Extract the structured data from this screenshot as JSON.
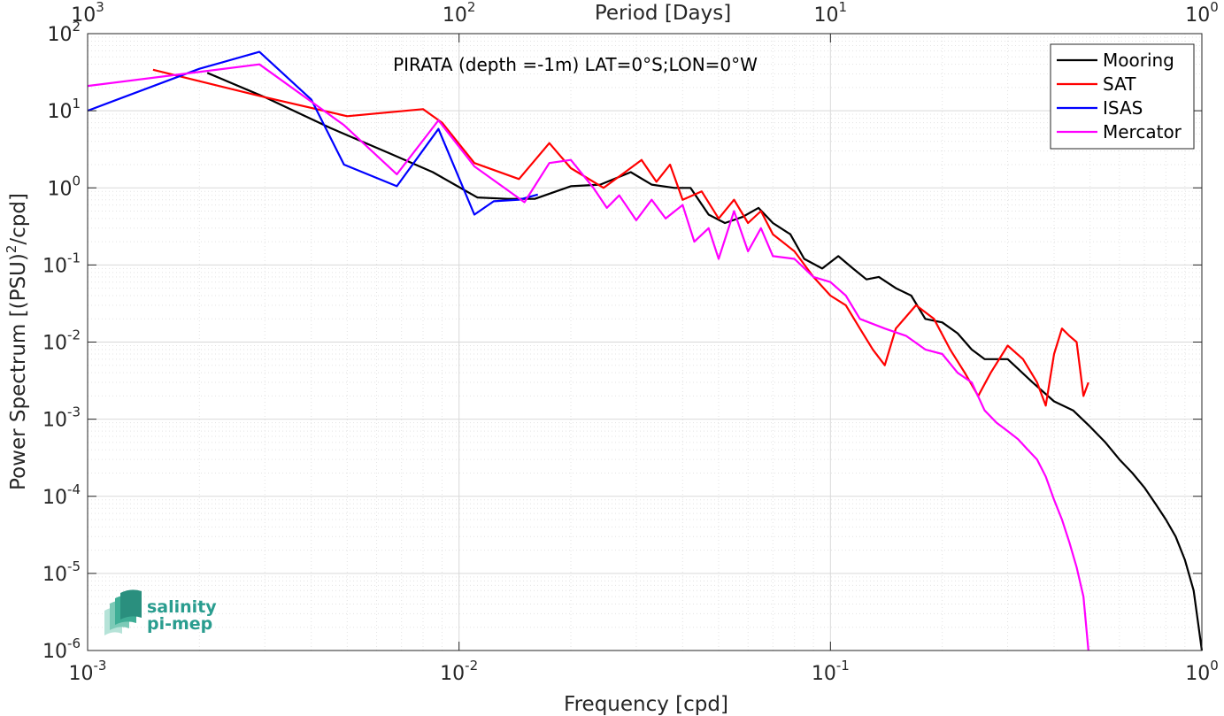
{
  "chart_data": {
    "type": "line",
    "title": "PIRATA (depth =-1m) LAT=0°S;LON=0°W",
    "xlabel": "Frequency [cpd]",
    "ylabel_main": "Power Spectrum [(PSU)",
    "ylabel_sup": "2",
    "ylabel_tail": "/cpd]",
    "top_xlabel": "Period [Days]",
    "x_scale": "log",
    "y_scale": "log",
    "xlim": [
      0.001,
      1
    ],
    "ylim": [
      1e-06,
      100
    ],
    "grid": true,
    "legend_position": "top-right",
    "x_ticks": [
      {
        "base": "10",
        "exp": "-3",
        "value": 0.001
      },
      {
        "base": "10",
        "exp": "-2",
        "value": 0.01
      },
      {
        "base": "10",
        "exp": "-1",
        "value": 0.1
      },
      {
        "base": "10",
        "exp": "0",
        "value": 1
      }
    ],
    "top_ticks": [
      {
        "base": "10",
        "exp": "3",
        "value": 0.001
      },
      {
        "base": "10",
        "exp": "2",
        "value": 0.01
      },
      {
        "base": "10",
        "exp": "1",
        "value": 0.1
      },
      {
        "base": "10",
        "exp": "0",
        "value": 1
      }
    ],
    "y_ticks": [
      {
        "base": "10",
        "exp": "2",
        "value": 100
      },
      {
        "base": "10",
        "exp": "1",
        "value": 10
      },
      {
        "base": "10",
        "exp": "0",
        "value": 1
      },
      {
        "base": "10",
        "exp": "-1",
        "value": 0.1
      },
      {
        "base": "10",
        "exp": "-2",
        "value": 0.01
      },
      {
        "base": "10",
        "exp": "-3",
        "value": 0.001
      },
      {
        "base": "10",
        "exp": "-4",
        "value": 0.0001
      },
      {
        "base": "10",
        "exp": "-5",
        "value": 1e-05
      },
      {
        "base": "10",
        "exp": "-6",
        "value": 1e-06
      }
    ],
    "series": [
      {
        "name": "Mooring",
        "color": "#000000",
        "points": [
          [
            0.0021,
            31
          ],
          [
            0.003,
            15
          ],
          [
            0.0045,
            6
          ],
          [
            0.0065,
            2.8
          ],
          [
            0.0085,
            1.6
          ],
          [
            0.0112,
            0.75
          ],
          [
            0.0135,
            0.72
          ],
          [
            0.016,
            0.72
          ],
          [
            0.02,
            1.05
          ],
          [
            0.024,
            1.1
          ],
          [
            0.029,
            1.6
          ],
          [
            0.033,
            1.1
          ],
          [
            0.038,
            1.0
          ],
          [
            0.042,
            1.0
          ],
          [
            0.047,
            0.45
          ],
          [
            0.052,
            0.35
          ],
          [
            0.058,
            0.42
          ],
          [
            0.064,
            0.55
          ],
          [
            0.07,
            0.35
          ],
          [
            0.078,
            0.25
          ],
          [
            0.085,
            0.12
          ],
          [
            0.095,
            0.09
          ],
          [
            0.105,
            0.13
          ],
          [
            0.115,
            0.09
          ],
          [
            0.125,
            0.065
          ],
          [
            0.135,
            0.07
          ],
          [
            0.15,
            0.05
          ],
          [
            0.165,
            0.04
          ],
          [
            0.18,
            0.02
          ],
          [
            0.2,
            0.018
          ],
          [
            0.22,
            0.013
          ],
          [
            0.24,
            0.008
          ],
          [
            0.26,
            0.006
          ],
          [
            0.3,
            0.006
          ],
          [
            0.35,
            0.003
          ],
          [
            0.4,
            0.0017
          ],
          [
            0.45,
            0.0013
          ],
          [
            0.5,
            0.0008
          ],
          [
            0.55,
            0.0005
          ],
          [
            0.6,
            0.0003
          ],
          [
            0.65,
            0.0002
          ],
          [
            0.7,
            0.00013
          ],
          [
            0.75,
            8e-05
          ],
          [
            0.8,
            5e-05
          ],
          [
            0.85,
            3e-05
          ],
          [
            0.9,
            1.5e-05
          ],
          [
            0.95,
            6e-06
          ],
          [
            1.0,
            1e-06
          ]
        ]
      },
      {
        "name": "SAT",
        "color": "#ff0000",
        "points": [
          [
            0.0015,
            34
          ],
          [
            0.003,
            15
          ],
          [
            0.005,
            8.5
          ],
          [
            0.008,
            10.5
          ],
          [
            0.009,
            7
          ],
          [
            0.011,
            2.1
          ],
          [
            0.0145,
            1.3
          ],
          [
            0.0175,
            3.8
          ],
          [
            0.02,
            1.8
          ],
          [
            0.0245,
            1.0
          ],
          [
            0.028,
            1.6
          ],
          [
            0.031,
            2.3
          ],
          [
            0.034,
            1.2
          ],
          [
            0.037,
            2.0
          ],
          [
            0.04,
            0.7
          ],
          [
            0.045,
            0.9
          ],
          [
            0.05,
            0.4
          ],
          [
            0.055,
            0.7
          ],
          [
            0.06,
            0.35
          ],
          [
            0.065,
            0.5
          ],
          [
            0.07,
            0.25
          ],
          [
            0.08,
            0.15
          ],
          [
            0.09,
            0.07
          ],
          [
            0.1,
            0.04
          ],
          [
            0.11,
            0.03
          ],
          [
            0.12,
            0.015
          ],
          [
            0.13,
            0.008
          ],
          [
            0.14,
            0.005
          ],
          [
            0.15,
            0.015
          ],
          [
            0.17,
            0.03
          ],
          [
            0.19,
            0.02
          ],
          [
            0.21,
            0.008
          ],
          [
            0.23,
            0.004
          ],
          [
            0.25,
            0.002
          ],
          [
            0.27,
            0.004
          ],
          [
            0.3,
            0.009
          ],
          [
            0.33,
            0.006
          ],
          [
            0.36,
            0.003
          ],
          [
            0.38,
            0.0015
          ],
          [
            0.4,
            0.007
          ],
          [
            0.42,
            0.015
          ],
          [
            0.44,
            0.012
          ],
          [
            0.46,
            0.01
          ],
          [
            0.48,
            0.002
          ],
          [
            0.495,
            0.003
          ]
        ]
      },
      {
        "name": "ISAS",
        "color": "#0000ff",
        "points": [
          [
            0.001,
            10
          ],
          [
            0.002,
            35
          ],
          [
            0.0029,
            58
          ],
          [
            0.004,
            14
          ],
          [
            0.0049,
            2.0
          ],
          [
            0.0068,
            1.05
          ],
          [
            0.0088,
            5.8
          ],
          [
            0.011,
            0.45
          ],
          [
            0.0124,
            0.67
          ],
          [
            0.0145,
            0.7
          ],
          [
            0.0163,
            0.82
          ]
        ]
      },
      {
        "name": "Mercator",
        "color": "#ff00ff",
        "points": [
          [
            0.001,
            21
          ],
          [
            0.0029,
            40
          ],
          [
            0.0049,
            6.5
          ],
          [
            0.0068,
            1.5
          ],
          [
            0.0088,
            7.5
          ],
          [
            0.011,
            1.9
          ],
          [
            0.015,
            0.65
          ],
          [
            0.0175,
            2.1
          ],
          [
            0.02,
            2.3
          ],
          [
            0.023,
            1.0
          ],
          [
            0.025,
            0.55
          ],
          [
            0.027,
            0.8
          ],
          [
            0.03,
            0.38
          ],
          [
            0.033,
            0.7
          ],
          [
            0.036,
            0.4
          ],
          [
            0.04,
            0.6
          ],
          [
            0.043,
            0.2
          ],
          [
            0.047,
            0.3
          ],
          [
            0.05,
            0.12
          ],
          [
            0.055,
            0.5
          ],
          [
            0.06,
            0.15
          ],
          [
            0.065,
            0.3
          ],
          [
            0.07,
            0.13
          ],
          [
            0.08,
            0.12
          ],
          [
            0.09,
            0.07
          ],
          [
            0.1,
            0.06
          ],
          [
            0.11,
            0.04
          ],
          [
            0.12,
            0.02
          ],
          [
            0.14,
            0.015
          ],
          [
            0.16,
            0.012
          ],
          [
            0.18,
            0.008
          ],
          [
            0.2,
            0.007
          ],
          [
            0.22,
            0.004
          ],
          [
            0.24,
            0.003
          ],
          [
            0.26,
            0.0013
          ],
          [
            0.28,
            0.0009
          ],
          [
            0.3,
            0.0007
          ],
          [
            0.32,
            0.00055
          ],
          [
            0.34,
            0.0004
          ],
          [
            0.36,
            0.0003
          ],
          [
            0.38,
            0.00018
          ],
          [
            0.4,
            9e-05
          ],
          [
            0.42,
            5e-05
          ],
          [
            0.44,
            2.5e-05
          ],
          [
            0.46,
            1.2e-05
          ],
          [
            0.48,
            5e-06
          ],
          [
            0.495,
            1e-06
          ]
        ]
      }
    ]
  },
  "logo": {
    "line1": "salinity",
    "line2": "pi-mep",
    "color": "#2a9d8f"
  }
}
